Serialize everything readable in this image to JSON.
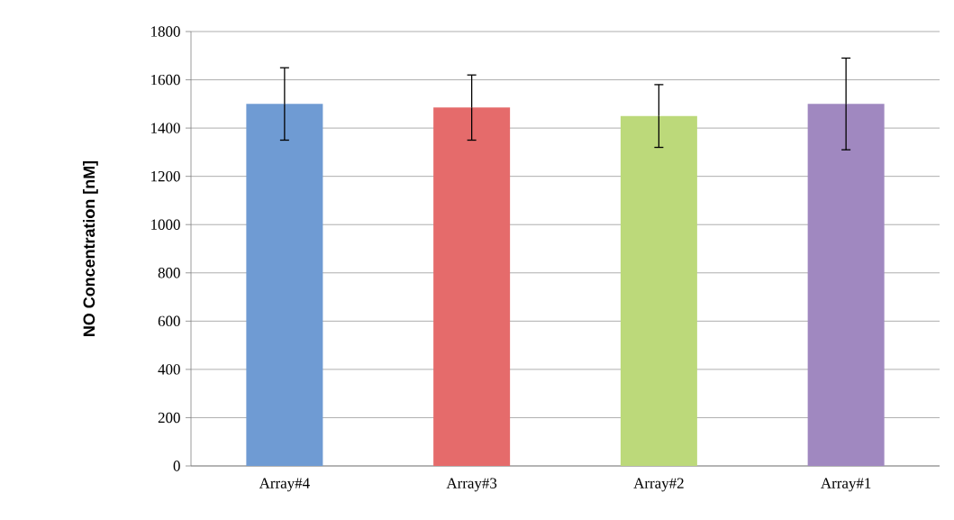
{
  "chart_data": {
    "type": "bar",
    "ylabel": "NO Concentration [nM]",
    "categories": [
      "Array#4",
      "Array#3",
      "Array#2",
      "Array#1"
    ],
    "values": [
      1500,
      1485,
      1450,
      1500
    ],
    "errors": [
      150,
      135,
      130,
      190
    ],
    "colors": [
      "#6f9bd3",
      "#e56b6b",
      "#bcd97a",
      "#a088c0"
    ],
    "ylim": [
      0,
      1800
    ],
    "yticks": [
      0,
      200,
      400,
      600,
      800,
      1000,
      1200,
      1400,
      1600,
      1800
    ],
    "grid": "y"
  }
}
